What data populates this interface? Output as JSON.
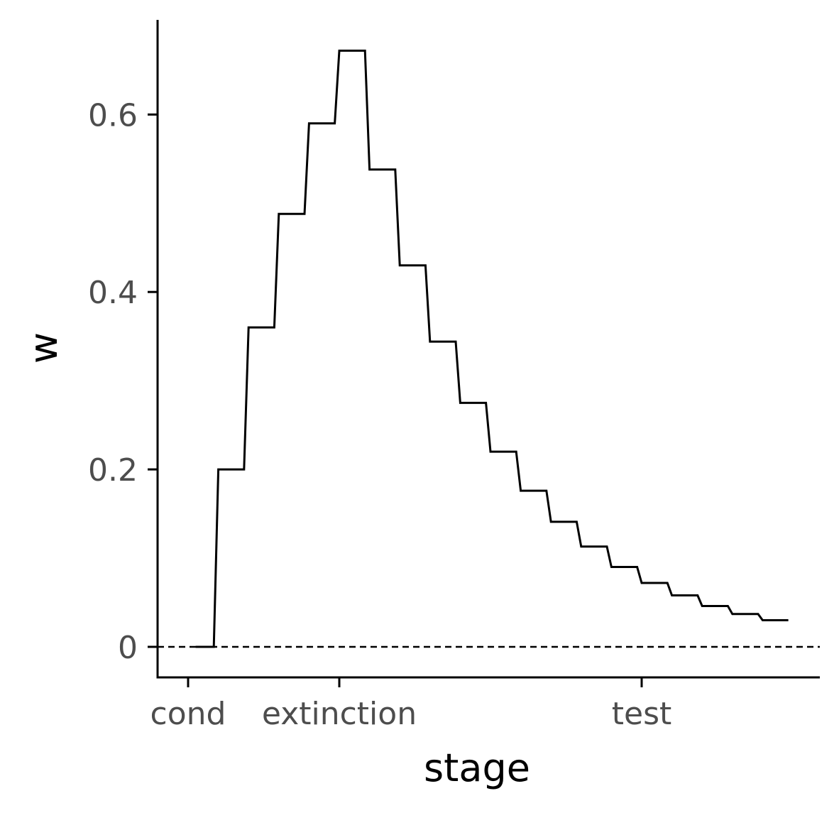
{
  "chart_data": {
    "type": "line",
    "title": "",
    "xlabel": "stage",
    "ylabel": "w",
    "ylim": [
      -0.033,
      0.706
    ],
    "x_ticks": [
      {
        "label": "cond",
        "x": 0
      },
      {
        "label": "extinction",
        "x": 5
      },
      {
        "label": "test",
        "x": 15
      }
    ],
    "y_ticks": [
      {
        "label": "0",
        "y": 0
      },
      {
        "label": "0.2",
        "y": 0.2
      },
      {
        "label": "0.4",
        "y": 0.4
      },
      {
        "label": "0.6",
        "y": 0.6
      }
    ],
    "reference_line": {
      "y": 0,
      "style": "dashed"
    },
    "grid": false,
    "series": [
      {
        "line_style": "step",
        "color": "#000000",
        "points": [
          {
            "x_start": 0.25,
            "x_end": 0.85,
            "y": 0.0
          },
          {
            "x_start": 1.0,
            "x_end": 1.85,
            "y": 0.2
          },
          {
            "x_start": 2.0,
            "x_end": 2.85,
            "y": 0.36
          },
          {
            "x_start": 3.0,
            "x_end": 3.85,
            "y": 0.488
          },
          {
            "x_start": 4.0,
            "x_end": 4.85,
            "y": 0.59
          },
          {
            "x_start": 5.0,
            "x_end": 5.85,
            "y": 0.672
          },
          {
            "x_start": 6.0,
            "x_end": 6.85,
            "y": 0.538
          },
          {
            "x_start": 7.0,
            "x_end": 7.85,
            "y": 0.43
          },
          {
            "x_start": 8.0,
            "x_end": 8.85,
            "y": 0.344
          },
          {
            "x_start": 9.0,
            "x_end": 9.85,
            "y": 0.275
          },
          {
            "x_start": 10.0,
            "x_end": 10.85,
            "y": 0.22
          },
          {
            "x_start": 11.0,
            "x_end": 11.85,
            "y": 0.176
          },
          {
            "x_start": 12.0,
            "x_end": 12.85,
            "y": 0.141
          },
          {
            "x_start": 13.0,
            "x_end": 13.85,
            "y": 0.113
          },
          {
            "x_start": 14.0,
            "x_end": 14.85,
            "y": 0.09
          },
          {
            "x_start": 15.0,
            "x_end": 15.85,
            "y": 0.072
          },
          {
            "x_start": 16.0,
            "x_end": 16.85,
            "y": 0.058
          },
          {
            "x_start": 17.0,
            "x_end": 17.85,
            "y": 0.046
          },
          {
            "x_start": 18.0,
            "x_end": 18.85,
            "y": 0.037
          },
          {
            "x_start": 19.0,
            "x_end": 19.85,
            "y": 0.03
          }
        ]
      }
    ]
  }
}
